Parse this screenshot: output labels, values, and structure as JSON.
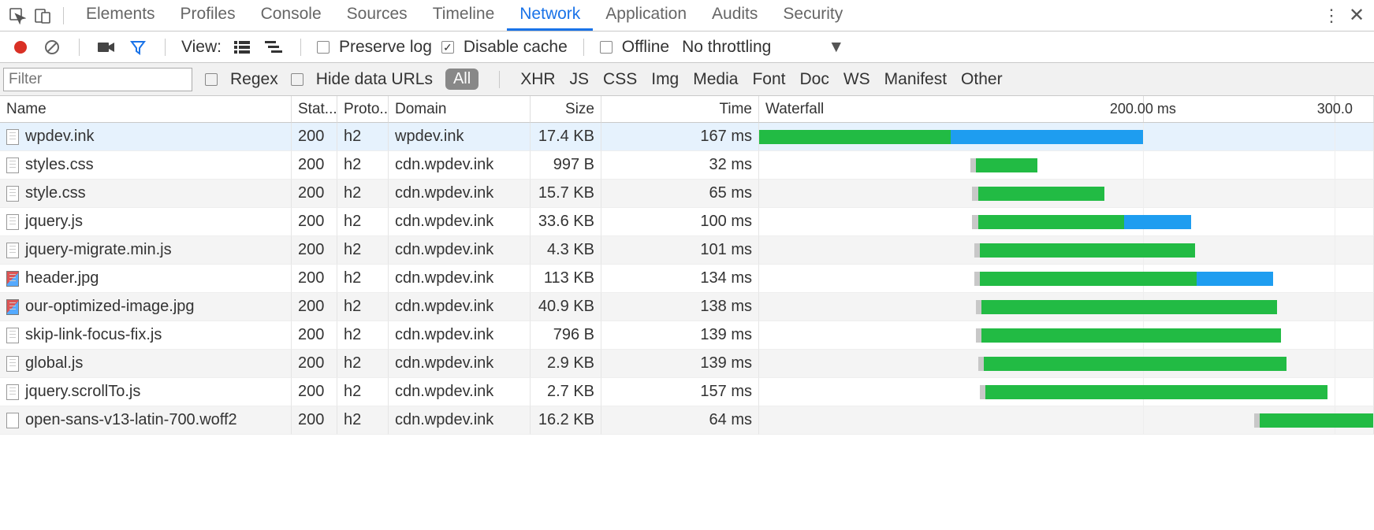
{
  "panelTabs": {
    "items": [
      "Elements",
      "Profiles",
      "Console",
      "Sources",
      "Timeline",
      "Network",
      "Application",
      "Audits",
      "Security"
    ],
    "active": 5
  },
  "toolbar": {
    "viewLabel": "View:",
    "preserveLog": {
      "label": "Preserve log",
      "checked": false
    },
    "disableCache": {
      "label": "Disable cache",
      "checked": true
    },
    "offline": {
      "label": "Offline",
      "checked": false
    },
    "throttle": "No throttling"
  },
  "filter": {
    "placeholder": "Filter",
    "regex": {
      "label": "Regex",
      "checked": false
    },
    "hideData": {
      "label": "Hide data URLs",
      "checked": false
    },
    "types": [
      "All",
      "XHR",
      "JS",
      "CSS",
      "Img",
      "Media",
      "Font",
      "Doc",
      "WS",
      "Manifest",
      "Other"
    ],
    "activeType": 0
  },
  "columns": [
    "Name",
    "Stat...",
    "Proto..",
    "Domain",
    "Size",
    "Time",
    "Waterfall"
  ],
  "waterfall": {
    "range_ms": 320,
    "ticks": [
      {
        "ms": 200,
        "label": "200.00 ms"
      },
      {
        "ms": 300,
        "label": "300.0"
      }
    ],
    "colors": {
      "green": "#22bb44",
      "blue": "#1e9df0",
      "queued": "#c8c8c8"
    }
  },
  "rows": [
    {
      "name": "wpdev.ink",
      "status": "200",
      "protocol": "h2",
      "domain": "wpdev.ink",
      "size": "17.4 KB",
      "time": "167 ms",
      "icon": "doc",
      "selected": true,
      "bars": [
        {
          "start": 0,
          "end": 100,
          "color": "green"
        },
        {
          "start": 100,
          "end": 200,
          "color": "blue"
        }
      ]
    },
    {
      "name": "styles.css",
      "status": "200",
      "protocol": "h2",
      "domain": "cdn.wpdev.ink",
      "size": "997 B",
      "time": "32 ms",
      "icon": "doc",
      "bars": [
        {
          "start": 110,
          "end": 113,
          "color": "queued"
        },
        {
          "start": 113,
          "end": 145,
          "color": "green"
        }
      ]
    },
    {
      "name": "style.css",
      "status": "200",
      "protocol": "h2",
      "domain": "cdn.wpdev.ink",
      "size": "15.7 KB",
      "time": "65 ms",
      "icon": "doc",
      "alt": true,
      "bars": [
        {
          "start": 111,
          "end": 114,
          "color": "queued"
        },
        {
          "start": 114,
          "end": 180,
          "color": "green"
        }
      ]
    },
    {
      "name": "jquery.js",
      "status": "200",
      "protocol": "h2",
      "domain": "cdn.wpdev.ink",
      "size": "33.6 KB",
      "time": "100 ms",
      "icon": "doc",
      "bars": [
        {
          "start": 111,
          "end": 114,
          "color": "queued"
        },
        {
          "start": 114,
          "end": 190,
          "color": "green"
        },
        {
          "start": 190,
          "end": 225,
          "color": "blue"
        }
      ]
    },
    {
      "name": "jquery-migrate.min.js",
      "status": "200",
      "protocol": "h2",
      "domain": "cdn.wpdev.ink",
      "size": "4.3 KB",
      "time": "101 ms",
      "icon": "doc",
      "alt": true,
      "bars": [
        {
          "start": 112,
          "end": 115,
          "color": "queued"
        },
        {
          "start": 115,
          "end": 227,
          "color": "green"
        }
      ]
    },
    {
      "name": "header.jpg",
      "status": "200",
      "protocol": "h2",
      "domain": "cdn.wpdev.ink",
      "size": "113 KB",
      "time": "134 ms",
      "icon": "img",
      "bars": [
        {
          "start": 112,
          "end": 115,
          "color": "queued"
        },
        {
          "start": 115,
          "end": 228,
          "color": "green"
        },
        {
          "start": 228,
          "end": 268,
          "color": "blue"
        }
      ]
    },
    {
      "name": "our-optimized-image.jpg",
      "status": "200",
      "protocol": "h2",
      "domain": "cdn.wpdev.ink",
      "size": "40.9 KB",
      "time": "138 ms",
      "icon": "img",
      "alt": true,
      "bars": [
        {
          "start": 113,
          "end": 116,
          "color": "queued"
        },
        {
          "start": 116,
          "end": 270,
          "color": "green"
        }
      ]
    },
    {
      "name": "skip-link-focus-fix.js",
      "status": "200",
      "protocol": "h2",
      "domain": "cdn.wpdev.ink",
      "size": "796 B",
      "time": "139 ms",
      "icon": "doc",
      "bars": [
        {
          "start": 113,
          "end": 116,
          "color": "queued"
        },
        {
          "start": 116,
          "end": 272,
          "color": "green"
        }
      ]
    },
    {
      "name": "global.js",
      "status": "200",
      "protocol": "h2",
      "domain": "cdn.wpdev.ink",
      "size": "2.9 KB",
      "time": "139 ms",
      "icon": "doc",
      "alt": true,
      "bars": [
        {
          "start": 114,
          "end": 117,
          "color": "queued"
        },
        {
          "start": 117,
          "end": 275,
          "color": "green"
        }
      ]
    },
    {
      "name": "jquery.scrollTo.js",
      "status": "200",
      "protocol": "h2",
      "domain": "cdn.wpdev.ink",
      "size": "2.7 KB",
      "time": "157 ms",
      "icon": "doc",
      "bars": [
        {
          "start": 115,
          "end": 118,
          "color": "queued"
        },
        {
          "start": 118,
          "end": 296,
          "color": "green"
        }
      ]
    },
    {
      "name": "open-sans-v13-latin-700.woff2",
      "status": "200",
      "protocol": "h2",
      "domain": "cdn.wpdev.ink",
      "size": "16.2 KB",
      "time": "64 ms",
      "icon": "empty",
      "alt": true,
      "bars": [
        {
          "start": 258,
          "end": 261,
          "color": "queued"
        },
        {
          "start": 261,
          "end": 330,
          "color": "green"
        }
      ]
    }
  ]
}
